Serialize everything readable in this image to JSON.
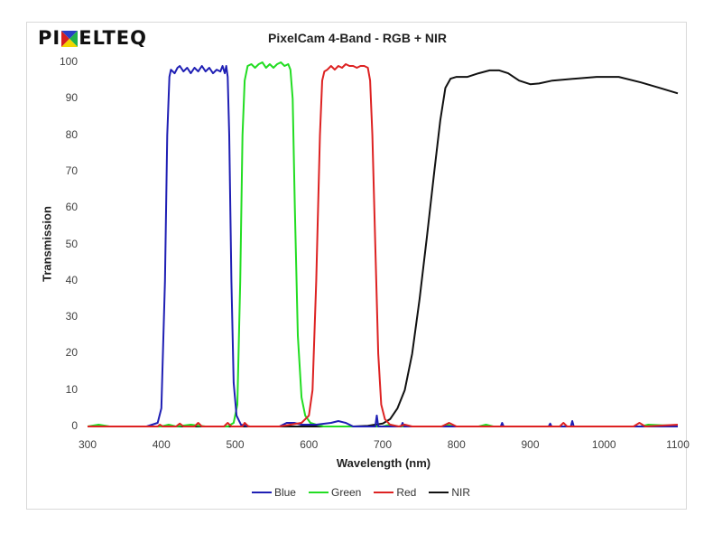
{
  "logo": {
    "text_left": "PI",
    "text_right": "ELTEQ",
    "icon": "pixelteq-x-logo-icon"
  },
  "chart_data": {
    "type": "line",
    "title": "PixelCam 4-Band - RGB + NIR",
    "xlabel": "Wavelength (nm)",
    "ylabel": "Transmission",
    "xlim": [
      300,
      1100
    ],
    "ylim": [
      0,
      100
    ],
    "x_ticks": [
      300,
      400,
      500,
      600,
      700,
      800,
      900,
      1000,
      1100
    ],
    "y_ticks": [
      0,
      10,
      20,
      30,
      40,
      50,
      60,
      70,
      80,
      90,
      100
    ],
    "grid": false,
    "legend_position": "bottom",
    "series": [
      {
        "name": "Blue",
        "color": "#1f1fb4",
        "points": [
          [
            300,
            0
          ],
          [
            380,
            0
          ],
          [
            395,
            1
          ],
          [
            400,
            5
          ],
          [
            405,
            40
          ],
          [
            408,
            80
          ],
          [
            411,
            96
          ],
          [
            413,
            98
          ],
          [
            418,
            97
          ],
          [
            422,
            98.5
          ],
          [
            425,
            99
          ],
          [
            430,
            97.5
          ],
          [
            435,
            98.5
          ],
          [
            440,
            97
          ],
          [
            445,
            98.5
          ],
          [
            450,
            97.5
          ],
          [
            455,
            99
          ],
          [
            460,
            97.5
          ],
          [
            465,
            98.5
          ],
          [
            470,
            97
          ],
          [
            475,
            98
          ],
          [
            480,
            97.5
          ],
          [
            483,
            99
          ],
          [
            486,
            97
          ],
          [
            488,
            99
          ],
          [
            490,
            96
          ],
          [
            492,
            80
          ],
          [
            495,
            40
          ],
          [
            498,
            12
          ],
          [
            502,
            3
          ],
          [
            508,
            0.5
          ],
          [
            520,
            0
          ],
          [
            560,
            0
          ],
          [
            570,
            1
          ],
          [
            580,
            1
          ],
          [
            590,
            0.5
          ],
          [
            610,
            0.5
          ],
          [
            630,
            1
          ],
          [
            640,
            1.5
          ],
          [
            650,
            1
          ],
          [
            660,
            0
          ],
          [
            690,
            0
          ],
          [
            692,
            3
          ],
          [
            694,
            0
          ],
          [
            725,
            0
          ],
          [
            727,
            1
          ],
          [
            729,
            0
          ],
          [
            860,
            0
          ],
          [
            862,
            1
          ],
          [
            864,
            0
          ],
          [
            925,
            0
          ],
          [
            927,
            0.8
          ],
          [
            929,
            0
          ],
          [
            955,
            0
          ],
          [
            957,
            1.5
          ],
          [
            959,
            0
          ],
          [
            1100,
            0
          ]
        ]
      },
      {
        "name": "Green",
        "color": "#22dd22",
        "points": [
          [
            300,
            0
          ],
          [
            315,
            0.5
          ],
          [
            330,
            0
          ],
          [
            400,
            0
          ],
          [
            410,
            0.5
          ],
          [
            420,
            0
          ],
          [
            440,
            0.5
          ],
          [
            460,
            0
          ],
          [
            490,
            0
          ],
          [
            498,
            1
          ],
          [
            503,
            6
          ],
          [
            507,
            40
          ],
          [
            510,
            80
          ],
          [
            513,
            95
          ],
          [
            517,
            99
          ],
          [
            522,
            99.5
          ],
          [
            527,
            98.5
          ],
          [
            532,
            99.5
          ],
          [
            537,
            100
          ],
          [
            542,
            98.5
          ],
          [
            547,
            99.5
          ],
          [
            552,
            98.5
          ],
          [
            557,
            99.5
          ],
          [
            562,
            100
          ],
          [
            567,
            99
          ],
          [
            572,
            99.5
          ],
          [
            575,
            98
          ],
          [
            578,
            90
          ],
          [
            581,
            60
          ],
          [
            585,
            25
          ],
          [
            590,
            8
          ],
          [
            595,
            3
          ],
          [
            602,
            1
          ],
          [
            610,
            0.5
          ],
          [
            620,
            0
          ],
          [
            700,
            0
          ],
          [
            710,
            0.5
          ],
          [
            720,
            0
          ],
          [
            780,
            0
          ],
          [
            788,
            0.5
          ],
          [
            795,
            0
          ],
          [
            830,
            0
          ],
          [
            840,
            0.5
          ],
          [
            850,
            0
          ],
          [
            1050,
            0
          ],
          [
            1060,
            0.5
          ],
          [
            1080,
            0.3
          ],
          [
            1100,
            0.3
          ]
        ]
      },
      {
        "name": "Red",
        "color": "#dd2222",
        "points": [
          [
            300,
            0
          ],
          [
            395,
            0
          ],
          [
            398,
            0.5
          ],
          [
            402,
            0
          ],
          [
            420,
            0
          ],
          [
            425,
            0.8
          ],
          [
            430,
            0
          ],
          [
            445,
            0
          ],
          [
            450,
            1
          ],
          [
            455,
            0
          ],
          [
            485,
            0
          ],
          [
            490,
            1
          ],
          [
            495,
            0
          ],
          [
            510,
            0
          ],
          [
            513,
            1
          ],
          [
            518,
            0
          ],
          [
            560,
            0
          ],
          [
            590,
            1
          ],
          [
            600,
            3
          ],
          [
            605,
            10
          ],
          [
            610,
            40
          ],
          [
            615,
            80
          ],
          [
            618,
            95
          ],
          [
            621,
            97.5
          ],
          [
            625,
            98
          ],
          [
            630,
            99
          ],
          [
            635,
            98
          ],
          [
            640,
            99
          ],
          [
            645,
            98.5
          ],
          [
            650,
            99.5
          ],
          [
            655,
            99
          ],
          [
            660,
            99
          ],
          [
            665,
            98.5
          ],
          [
            670,
            99
          ],
          [
            675,
            99
          ],
          [
            680,
            98.5
          ],
          [
            683,
            95
          ],
          [
            686,
            80
          ],
          [
            690,
            50
          ],
          [
            694,
            20
          ],
          [
            698,
            6
          ],
          [
            703,
            2
          ],
          [
            710,
            0.5
          ],
          [
            722,
            0
          ],
          [
            730,
            0.5
          ],
          [
            740,
            0
          ],
          [
            780,
            0
          ],
          [
            790,
            1
          ],
          [
            800,
            0
          ],
          [
            940,
            0
          ],
          [
            945,
            1
          ],
          [
            950,
            0
          ],
          [
            1040,
            0
          ],
          [
            1048,
            1
          ],
          [
            1056,
            0
          ],
          [
            1100,
            0.5
          ]
        ]
      },
      {
        "name": "NIR",
        "color": "#111111",
        "points": [
          [
            300,
            0
          ],
          [
            660,
            0
          ],
          [
            680,
            0.2
          ],
          [
            700,
            0.8
          ],
          [
            710,
            2
          ],
          [
            720,
            5
          ],
          [
            730,
            10
          ],
          [
            740,
            20
          ],
          [
            750,
            35
          ],
          [
            760,
            52
          ],
          [
            770,
            70
          ],
          [
            778,
            84
          ],
          [
            785,
            93
          ],
          [
            792,
            95.5
          ],
          [
            800,
            96
          ],
          [
            815,
            96
          ],
          [
            830,
            97
          ],
          [
            845,
            97.8
          ],
          [
            858,
            97.8
          ],
          [
            870,
            97
          ],
          [
            885,
            95
          ],
          [
            900,
            94
          ],
          [
            912,
            94.2
          ],
          [
            930,
            95
          ],
          [
            960,
            95.5
          ],
          [
            990,
            96
          ],
          [
            1020,
            96
          ],
          [
            1050,
            94.5
          ],
          [
            1075,
            93
          ],
          [
            1100,
            91.5
          ]
        ]
      }
    ]
  }
}
